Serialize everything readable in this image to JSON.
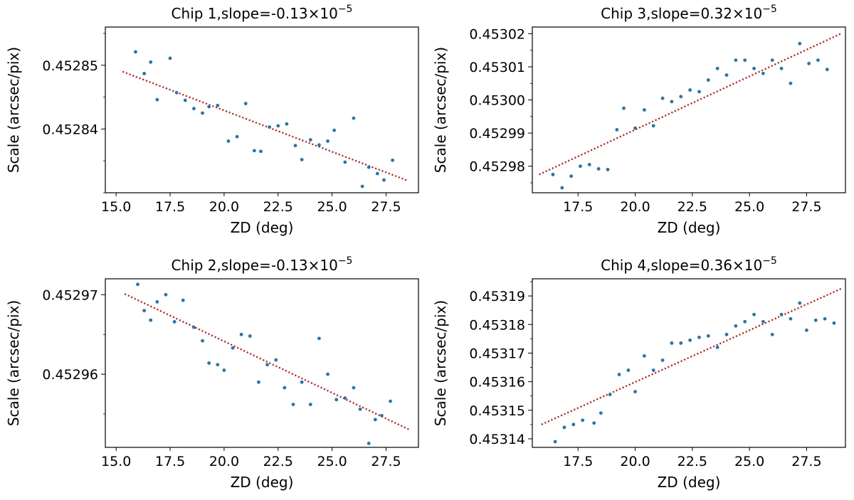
{
  "chart_data": [
    {
      "type": "scatter",
      "title": "Chip 1,slope=-0.13×10",
      "title_sup": "−5",
      "xlabel": "ZD (deg)",
      "ylabel": "Scale (arcsec/pix)",
      "xlim": [
        14.5,
        29.0
      ],
      "ylim": [
        0.45283,
        0.452856
      ],
      "xticks": [
        15.0,
        17.5,
        20.0,
        22.5,
        25.0,
        27.5
      ],
      "xtick_labels": [
        "15.0",
        "17.5",
        "20.0",
        "22.5",
        "25.0",
        "27.5"
      ],
      "yticks": [
        0.45284,
        0.45285
      ],
      "ytick_labels": [
        "0.45284",
        "0.45285"
      ],
      "y_minor_step": 5e-06,
      "grid": false,
      "marker_color": "#1f77b4",
      "fit_color": "#e00000",
      "fit_line": {
        "x": [
          15.3,
          28.5
        ],
        "y": [
          0.452849,
          0.4528319
        ]
      },
      "series": [
        {
          "x": [
            15.9,
            16.3,
            16.6,
            16.9,
            17.5,
            17.8,
            18.2,
            18.6,
            19.0,
            19.3,
            19.7,
            20.2,
            20.6,
            21.0,
            21.4,
            21.7,
            22.1,
            22.5,
            22.9,
            23.3,
            23.6,
            24.0,
            24.4,
            24.8,
            25.1,
            25.6,
            26.0,
            26.4,
            26.7,
            27.1,
            27.4,
            27.8
          ],
          "y": [
            0.4528521,
            0.4528487,
            0.4528505,
            0.4528446,
            0.4528511,
            0.4528457,
            0.4528445,
            0.4528432,
            0.4528425,
            0.4528435,
            0.4528437,
            0.4528381,
            0.4528388,
            0.452844,
            0.4528366,
            0.4528365,
            0.4528403,
            0.4528405,
            0.4528408,
            0.4528374,
            0.4528352,
            0.4528383,
            0.4528375,
            0.4528381,
            0.4528398,
            0.4528348,
            0.4528417,
            0.452831,
            0.452834,
            0.452833,
            0.452832,
            0.4528351
          ]
        }
      ]
    },
    {
      "type": "scatter",
      "title": "Chip 3,slope=0.32×10",
      "title_sup": "−5",
      "xlabel": "ZD (deg)",
      "ylabel": "Scale (arcsec/pix)",
      "xlim": [
        15.5,
        29.2
      ],
      "ylim": [
        0.452972,
        0.453022
      ],
      "xticks": [
        17.5,
        20.0,
        22.5,
        25.0,
        27.5
      ],
      "xtick_labels": [
        "17.5",
        "20.0",
        "22.5",
        "25.0",
        "27.5"
      ],
      "yticks": [
        0.45298,
        0.45299,
        0.453,
        0.45301,
        0.45302
      ],
      "ytick_labels": [
        "0.45298",
        "0.45299",
        "0.45300",
        "0.45301",
        "0.45302"
      ],
      "y_minor_step": 5e-06,
      "grid": false,
      "marker_color": "#1f77b4",
      "fit_color": "#e00000",
      "fit_line": {
        "x": [
          15.8,
          29.0
        ],
        "y": [
          0.4529775,
          0.45302
        ]
      },
      "series": [
        {
          "x": [
            16.4,
            16.8,
            17.2,
            17.6,
            18.0,
            18.4,
            18.8,
            19.2,
            19.5,
            20.0,
            20.4,
            20.8,
            21.2,
            21.6,
            22.0,
            22.4,
            22.8,
            23.2,
            23.6,
            24.0,
            24.4,
            24.8,
            25.2,
            25.6,
            26.0,
            26.4,
            26.8,
            27.2,
            27.6,
            28.0,
            28.4
          ],
          "y": [
            0.4529775,
            0.4529735,
            0.452977,
            0.45298,
            0.4529805,
            0.4529792,
            0.452979,
            0.452991,
            0.4529975,
            0.4529915,
            0.452997,
            0.4529922,
            0.4530005,
            0.4529995,
            0.453001,
            0.453003,
            0.4530025,
            0.453006,
            0.4530095,
            0.4530075,
            0.453012,
            0.453012,
            0.4530095,
            0.453008,
            0.453012,
            0.4530095,
            0.453005,
            0.453017,
            0.453011,
            0.453012,
            0.4530092
          ]
        }
      ]
    },
    {
      "type": "scatter",
      "title": "Chip 2,slope=-0.13×10",
      "title_sup": "−5",
      "xlabel": "ZD (deg)",
      "ylabel": "Scale (arcsec/pix)",
      "xlim": [
        14.5,
        29.0
      ],
      "ylim": [
        0.4529508,
        0.452972
      ],
      "xticks": [
        15.0,
        17.5,
        20.0,
        22.5,
        25.0,
        27.5
      ],
      "xtick_labels": [
        "15.0",
        "17.5",
        "20.0",
        "22.5",
        "25.0",
        "27.5"
      ],
      "yticks": [
        0.45296,
        0.45297
      ],
      "ytick_labels": [
        "0.45296",
        "0.45297"
      ],
      "y_minor_step": 5e-06,
      "grid": false,
      "marker_color": "#1f77b4",
      "fit_color": "#e00000",
      "fit_line": {
        "x": [
          15.4,
          28.6
        ],
        "y": [
          0.4529701,
          0.452953
        ]
      },
      "series": [
        {
          "x": [
            16.0,
            16.3,
            16.6,
            16.9,
            17.3,
            17.7,
            18.1,
            18.6,
            19.0,
            19.3,
            19.7,
            20.0,
            20.4,
            20.8,
            21.2,
            21.6,
            22.0,
            22.4,
            22.8,
            23.2,
            23.6,
            24.0,
            24.4,
            24.8,
            25.2,
            25.6,
            26.0,
            26.3,
            26.7,
            27.0,
            27.3,
            27.7
          ],
          "y": [
            0.4529713,
            0.452968,
            0.4529668,
            0.4529691,
            0.45297,
            0.4529666,
            0.4529693,
            0.4529659,
            0.4529642,
            0.4529614,
            0.4529612,
            0.4529605,
            0.4529633,
            0.452965,
            0.4529648,
            0.452959,
            0.4529612,
            0.4529618,
            0.4529583,
            0.4529562,
            0.452959,
            0.4529562,
            0.4529645,
            0.45296,
            0.4529568,
            0.452957,
            0.4529583,
            0.4529556,
            0.4529513,
            0.4529543,
            0.4529548,
            0.4529566
          ]
        }
      ]
    },
    {
      "type": "scatter",
      "title": "Chip 4,slope=0.36×10",
      "title_sup": "−5",
      "xlabel": "ZD (deg)",
      "ylabel": "Scale (arcsec/pix)",
      "xlim": [
        15.5,
        29.2
      ],
      "ylim": [
        0.453137,
        0.453196
      ],
      "xticks": [
        17.5,
        20.0,
        22.5,
        25.0,
        27.5
      ],
      "xtick_labels": [
        "17.5",
        "20.0",
        "22.5",
        "25.0",
        "27.5"
      ],
      "yticks": [
        0.45314,
        0.45315,
        0.45316,
        0.45317,
        0.45318,
        0.45319
      ],
      "ytick_labels": [
        "0.45314",
        "0.45315",
        "0.45316",
        "0.45317",
        "0.45318",
        "0.45319"
      ],
      "y_minor_step": 5e-06,
      "grid": false,
      "marker_color": "#1f77b4",
      "fit_color": "#e00000",
      "fit_line": {
        "x": [
          15.9,
          29.0
        ],
        "y": [
          0.453145,
          0.4531925
        ]
      },
      "series": [
        {
          "x": [
            16.5,
            16.9,
            17.3,
            17.7,
            18.2,
            18.5,
            18.9,
            19.3,
            19.7,
            20.0,
            20.4,
            20.8,
            21.2,
            21.6,
            22.0,
            22.4,
            22.8,
            23.2,
            23.6,
            24.0,
            24.4,
            24.8,
            25.2,
            25.6,
            26.0,
            26.4,
            26.8,
            27.2,
            27.5,
            27.9,
            28.3,
            28.7
          ],
          "y": [
            0.453139,
            0.453144,
            0.453145,
            0.4531465,
            0.4531455,
            0.453149,
            0.4531555,
            0.4531625,
            0.453164,
            0.4531565,
            0.453169,
            0.453164,
            0.4531675,
            0.4531735,
            0.4531735,
            0.4531745,
            0.4531755,
            0.453176,
            0.453172,
            0.4531765,
            0.4531795,
            0.453181,
            0.4531835,
            0.453181,
            0.4531765,
            0.4531835,
            0.453182,
            0.4531875,
            0.453178,
            0.4531815,
            0.453182,
            0.4531805
          ]
        }
      ]
    }
  ]
}
